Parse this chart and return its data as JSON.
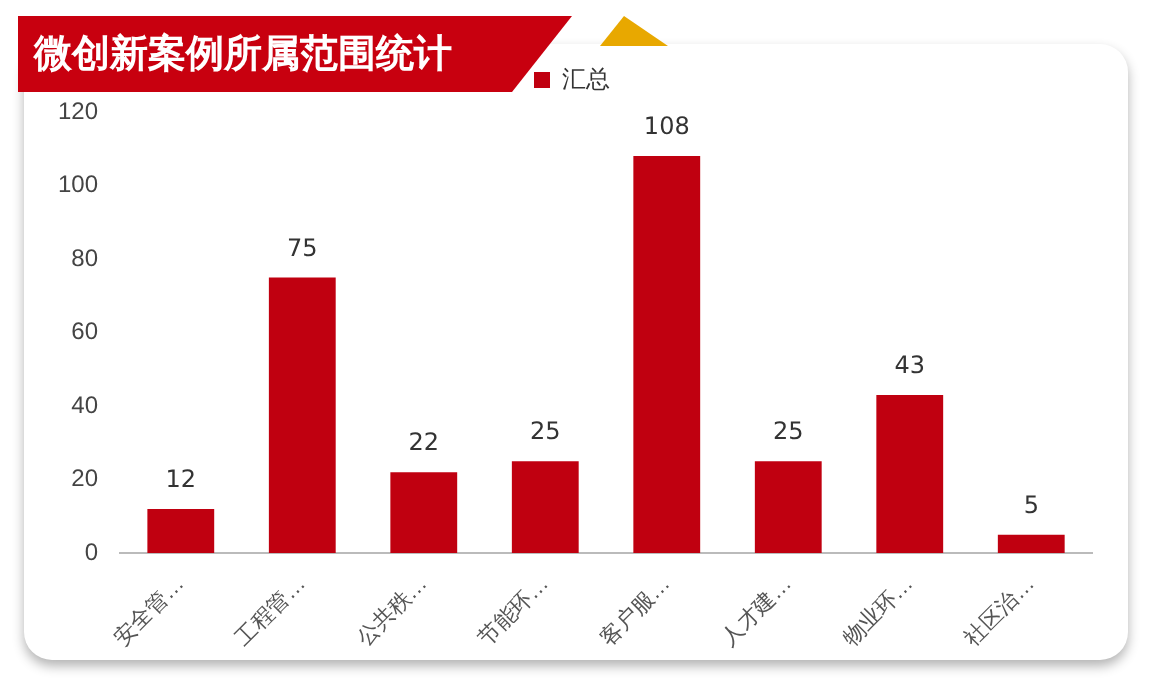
{
  "chart_data": {
    "type": "bar",
    "title": "微创新案例所属范围统计",
    "categories": [
      "安全管…",
      "工程管…",
      "公共秩…",
      "节能环…",
      "客户服…",
      "人才建…",
      "物业环…",
      "社区治…"
    ],
    "series": [
      {
        "name": "汇总",
        "color": "#c00010",
        "values": [
          12,
          75,
          22,
          25,
          108,
          25,
          43,
          5
        ]
      }
    ],
    "ylim": [
      0,
      120
    ],
    "yticks": [
      0,
      20,
      40,
      60,
      80,
      100,
      120
    ],
    "grid": false,
    "legend": "top",
    "data_labels": true
  }
}
